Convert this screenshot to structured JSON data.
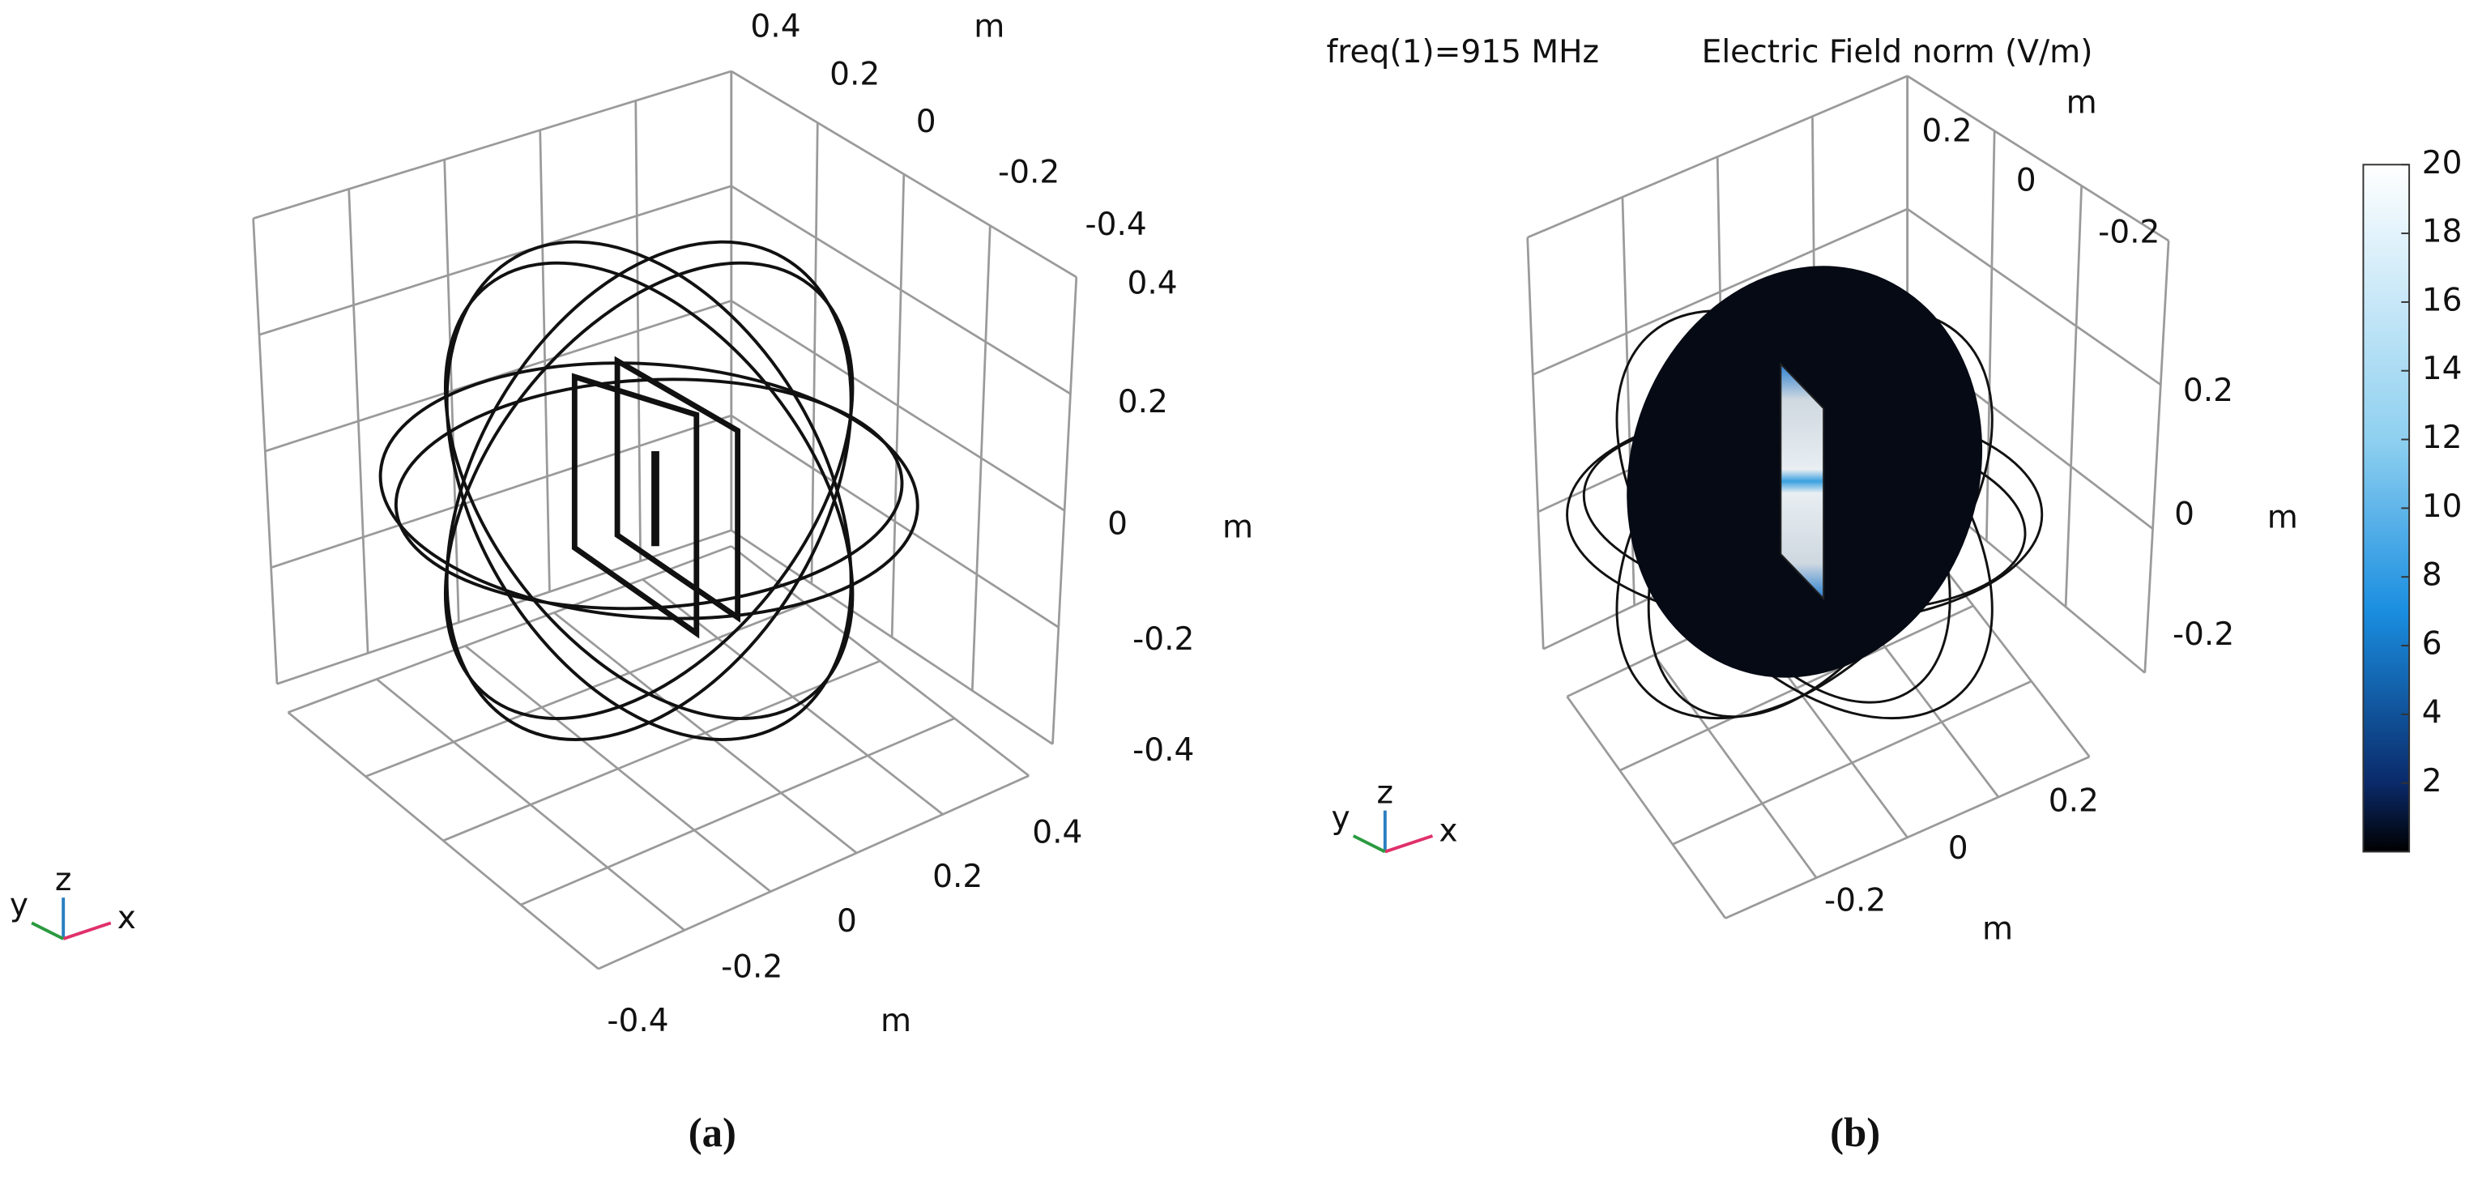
{
  "panels": [
    {
      "caption": "(a)",
      "y_axis": {
        "ticks": [
          "0.4",
          "0.2",
          "0",
          "-0.2",
          "-0.4"
        ],
        "unit": "m"
      },
      "z_axis": {
        "ticks": [
          "0.4",
          "0.2",
          "0",
          "-0.2",
          "-0.4"
        ],
        "unit": "m"
      },
      "x_axis": {
        "ticks": [
          "0.4",
          "0.2",
          "0",
          "-0.2",
          "-0.4"
        ],
        "unit": "m"
      },
      "triad": {
        "x": "x",
        "y": "y",
        "z": "z"
      }
    },
    {
      "caption": "(b)",
      "header": {
        "freq": "freq(1)=915 MHz",
        "quantity": "Electric Field norm (V/m)"
      },
      "y_axis": {
        "ticks": [
          "0.2",
          "0",
          "-0.2"
        ],
        "unit": "m"
      },
      "z_axis": {
        "ticks": [
          "0.2",
          "0",
          "-0.2"
        ],
        "unit": "m"
      },
      "x_axis": {
        "ticks": [
          "0.2",
          "0",
          "-0.2"
        ],
        "unit": "m"
      },
      "triad": {
        "x": "x",
        "y": "y",
        "z": "z"
      },
      "colorbar": {
        "ticks": [
          "20",
          "18",
          "16",
          "14",
          "12",
          "10",
          "8",
          "6",
          "4",
          "2"
        ]
      }
    }
  ]
}
